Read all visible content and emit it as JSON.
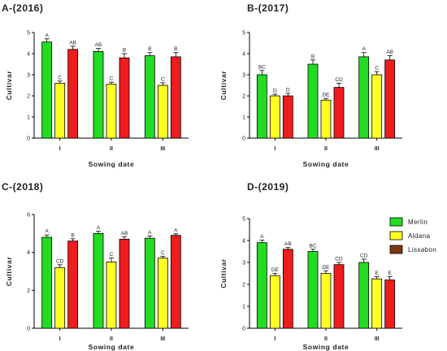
{
  "colors": {
    "merlin": "#22dd22",
    "aldana": "#ffff22",
    "lissabon": "#ee1c1c",
    "legend_lissabon": "#7a3814"
  },
  "legend": [
    {
      "name": "Merlin",
      "color": "#22dd22"
    },
    {
      "name": "Aldana",
      "color": "#ffff22"
    },
    {
      "name": "Lissabon",
      "color": "#7a3814"
    }
  ],
  "chart_data": [
    {
      "type": "bar",
      "title": "A-(2016)",
      "ylabel": "Cultivar",
      "xlabel": "Sowing date",
      "categories": [
        "I",
        "II",
        "III"
      ],
      "ylim": [
        0,
        5
      ],
      "yticks": [
        0,
        1,
        2,
        3,
        4,
        5
      ],
      "series": [
        {
          "name": "Merlin",
          "values": [
            4.55,
            4.1,
            3.9
          ],
          "errors": [
            0.15,
            0.15,
            0.15
          ],
          "labels": [
            "A",
            "AB",
            "B"
          ]
        },
        {
          "name": "Aldana",
          "values": [
            2.6,
            2.55,
            2.5
          ],
          "errors": [
            0.1,
            0.1,
            0.12
          ],
          "labels": [
            "C",
            "C",
            "C"
          ]
        },
        {
          "name": "Lissabon",
          "values": [
            4.2,
            3.8,
            3.85
          ],
          "errors": [
            0.15,
            0.2,
            0.2
          ],
          "labels": [
            "AB",
            "B",
            "B"
          ]
        }
      ]
    },
    {
      "type": "bar",
      "title": "B-(2017)",
      "ylabel": "Cultivar",
      "xlabel": "Sowing date",
      "categories": [
        "I",
        "II",
        "III"
      ],
      "ylim": [
        0,
        5
      ],
      "yticks": [
        0,
        1,
        2,
        3,
        4,
        5
      ],
      "series": [
        {
          "name": "Merlin",
          "values": [
            3.0,
            3.5,
            3.85
          ],
          "errors": [
            0.2,
            0.2,
            0.2
          ],
          "labels": [
            "BC",
            "B",
            "A"
          ]
        },
        {
          "name": "Aldana",
          "values": [
            2.0,
            1.8,
            3.0
          ],
          "errors": [
            0.08,
            0.08,
            0.15
          ],
          "labels": [
            "D",
            "DE",
            "C"
          ]
        },
        {
          "name": "Lissabon",
          "values": [
            2.0,
            2.4,
            3.7
          ],
          "errors": [
            0.12,
            0.2,
            0.2
          ],
          "labels": [
            "D",
            "CD",
            "AB"
          ]
        }
      ]
    },
    {
      "type": "bar",
      "title": "C-(2018)",
      "ylabel": "Cultivar",
      "xlabel": "Sowing date",
      "categories": [
        "I",
        "II",
        "III"
      ],
      "ylim": [
        0,
        6
      ],
      "yticks": [
        0,
        2,
        4,
        6
      ],
      "series": [
        {
          "name": "Merlin",
          "values": [
            4.8,
            5.0,
            4.75
          ],
          "errors": [
            0.12,
            0.12,
            0.12
          ],
          "labels": [
            "A",
            "A",
            "A"
          ]
        },
        {
          "name": "Aldana",
          "values": [
            3.2,
            3.5,
            3.7
          ],
          "errors": [
            0.15,
            0.2,
            0.1
          ],
          "labels": [
            "CD",
            "C",
            "C"
          ]
        },
        {
          "name": "Lissabon",
          "values": [
            4.6,
            4.7,
            4.9
          ],
          "errors": [
            0.12,
            0.12,
            0.08
          ],
          "labels": [
            "B",
            "AB",
            "A"
          ]
        }
      ]
    },
    {
      "type": "bar",
      "title": "D-(2019)",
      "ylabel": "Cultivar",
      "xlabel": "Sowing date",
      "categories": [
        "I",
        "II",
        "III"
      ],
      "ylim": [
        0,
        5
      ],
      "yticks": [
        0,
        1,
        2,
        3,
        4,
        5
      ],
      "series": [
        {
          "name": "Merlin",
          "values": [
            3.9,
            3.5,
            3.0
          ],
          "errors": [
            0.12,
            0.1,
            0.15
          ],
          "labels": [
            "A",
            "BC",
            "CD"
          ]
        },
        {
          "name": "Aldana",
          "values": [
            2.4,
            2.5,
            2.25
          ],
          "errors": [
            0.1,
            0.12,
            0.1
          ],
          "labels": [
            "DE",
            "DE",
            "E"
          ]
        },
        {
          "name": "Lissabon",
          "values": [
            3.6,
            2.9,
            2.2
          ],
          "errors": [
            0.08,
            0.1,
            0.15
          ],
          "labels": [
            "AB",
            "CD",
            "E"
          ]
        }
      ]
    }
  ]
}
